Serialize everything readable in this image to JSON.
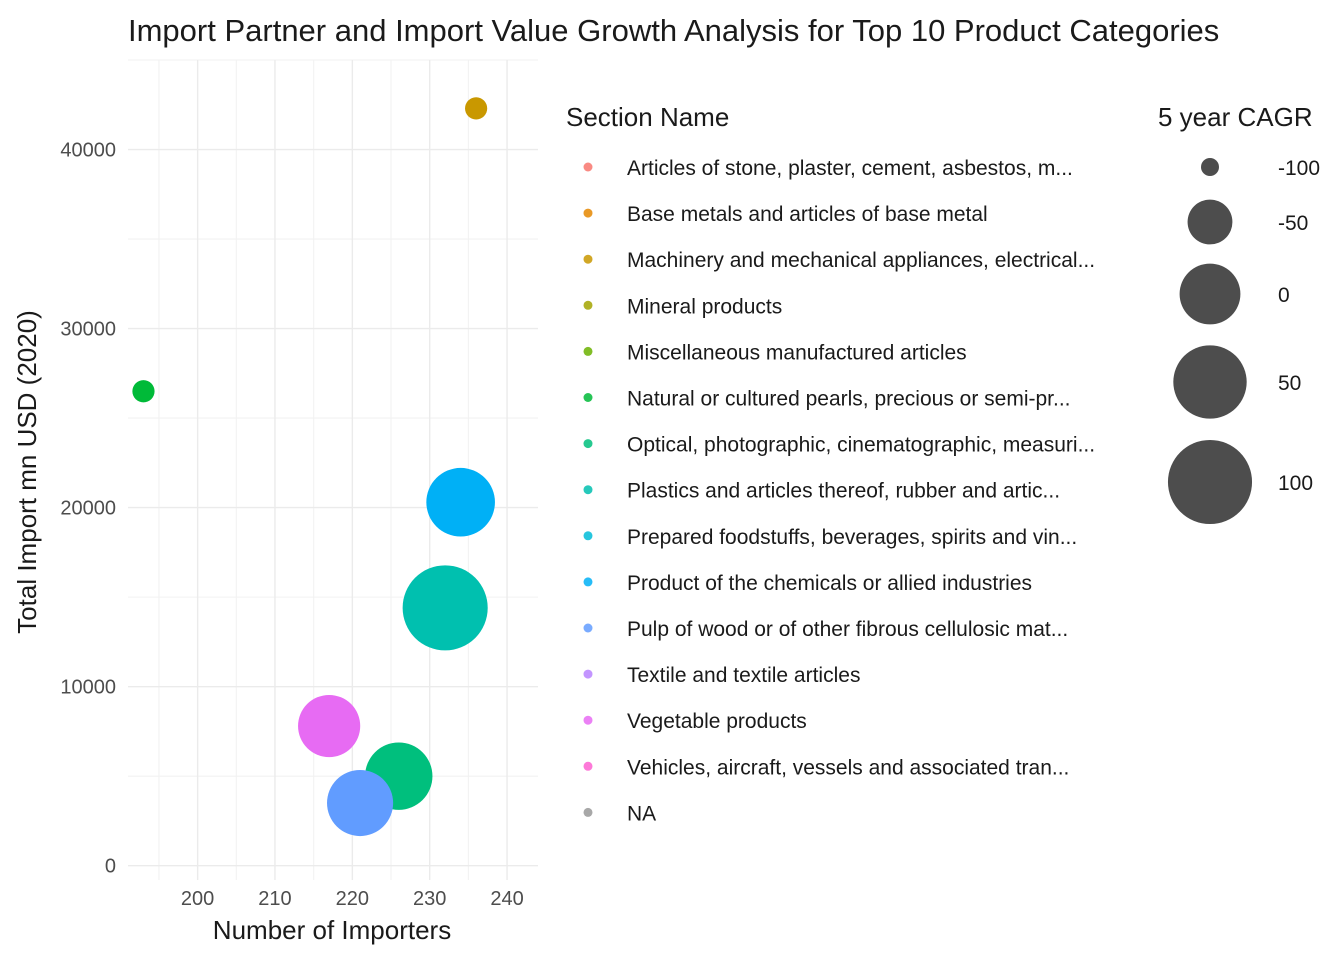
{
  "chart_data": {
    "type": "scatter",
    "title": "Import Partner and Import Value Growth Analysis for Top 10 Product Categories",
    "xlabel": "Number of Importers",
    "ylabel": "Total Import mn USD (2020)",
    "xlim": [
      191,
      244
    ],
    "ylim": [
      -800,
      45000
    ],
    "x_ticks": [
      200,
      210,
      220,
      230,
      240
    ],
    "y_ticks": [
      0,
      10000,
      20000,
      30000,
      40000
    ],
    "grid": true,
    "legend_placement": "right",
    "color_legend": {
      "title": "Section Name",
      "entries": [
        {
          "label": "Articles of stone, plaster, cement, asbestos, m...",
          "color": "#F8766D"
        },
        {
          "label": "Base metals and articles of base metal",
          "color": "#E58700"
        },
        {
          "label": "Machinery and mechanical appliances, electrical...",
          "color": "#C99800"
        },
        {
          "label": "Mineral products",
          "color": "#A3A500"
        },
        {
          "label": "Miscellaneous manufactured articles",
          "color": "#6BB100"
        },
        {
          "label": "Natural or cultured pearls, precious or semi-pr...",
          "color": "#00BA38"
        },
        {
          "label": "Optical, photographic, cinematographic, measuri...",
          "color": "#00BF7D"
        },
        {
          "label": "Plastics and articles thereof, rubber and artic...",
          "color": "#00C0AF"
        },
        {
          "label": "Prepared foodstuffs, beverages, spirits and vin...",
          "color": "#00BCD8"
        },
        {
          "label": "Product of the chemicals or allied industries",
          "color": "#00B0F6"
        },
        {
          "label": "Pulp of wood or of other fibrous cellulosic mat...",
          "color": "#619CFF"
        },
        {
          "label": "Textile and textile articles",
          "color": "#B983FF"
        },
        {
          "label": "Vegetable products",
          "color": "#E76BF3"
        },
        {
          "label": "Vehicles, aircraft, vessels and associated tran...",
          "color": "#FD61D1"
        },
        {
          "label": "NA",
          "color": "#999999"
        }
      ]
    },
    "size_legend": {
      "title": "5 year CAGR",
      "entries": [
        {
          "label": "-100",
          "value": -100
        },
        {
          "label": "-50",
          "value": -50
        },
        {
          "label": "0",
          "value": 0
        },
        {
          "label": "50",
          "value": 50
        },
        {
          "label": "100",
          "value": 100
        }
      ]
    },
    "size_range": [
      -100,
      120
    ],
    "points": [
      {
        "x": 236,
        "y": 42300,
        "cagr": -95,
        "color": "#C99800"
      },
      {
        "x": 193,
        "y": 26500,
        "cagr": -95,
        "color": "#00BA38"
      },
      {
        "x": 234,
        "y": 20300,
        "cagr": 30,
        "color": "#00B0F6"
      },
      {
        "x": 232,
        "y": 14400,
        "cagr": 105,
        "color": "#00C0AF"
      },
      {
        "x": 217,
        "y": 7800,
        "cagr": 5,
        "color": "#E76BF3"
      },
      {
        "x": 226,
        "y": 5000,
        "cagr": 25,
        "color": "#00BF7D"
      },
      {
        "x": 221,
        "y": 3500,
        "cagr": 20,
        "color": "#619CFF"
      }
    ]
  }
}
